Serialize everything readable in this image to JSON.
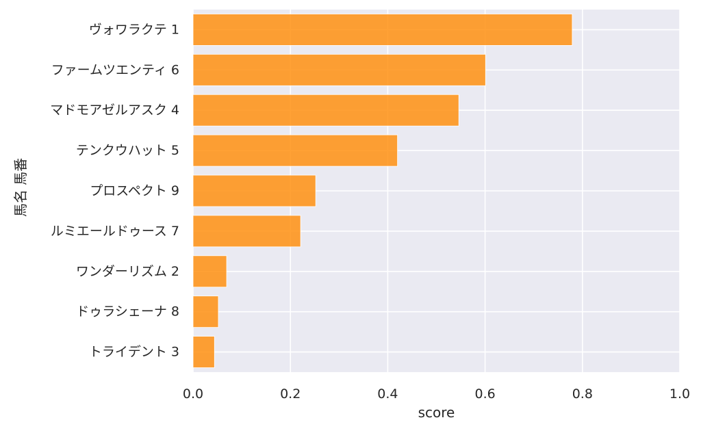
{
  "chart_data": {
    "type": "bar",
    "orientation": "horizontal",
    "xlabel": "score",
    "ylabel": "馬名 馬番",
    "xlim": [
      0.0,
      1.0
    ],
    "xticks": [
      "0.0",
      "0.2",
      "0.4",
      "0.6",
      "0.8",
      "1.0"
    ],
    "grid": true,
    "categories": [
      "ヴォワラクテ 1",
      "ファームツエンティ 6",
      "マドモアゼルアスク 4",
      "テンクウハット 5",
      "プロスペクト 9",
      "ルミエールドゥース 7",
      "ワンダーリズム 2",
      "ドゥラシェーナ 8",
      "トライデント 3"
    ],
    "values": [
      0.779,
      0.601,
      0.546,
      0.42,
      0.252,
      0.221,
      0.069,
      0.052,
      0.044
    ],
    "colors": {
      "bar": "#ff9112",
      "background": "#eaeaf2",
      "grid": "#ffffff"
    }
  }
}
